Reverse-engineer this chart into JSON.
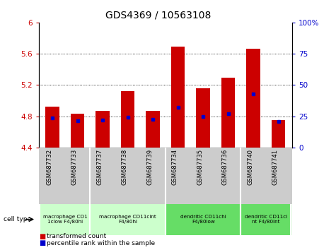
{
  "title": "GDS4369 / 10563108",
  "samples": [
    "GSM687732",
    "GSM687733",
    "GSM687737",
    "GSM687738",
    "GSM687739",
    "GSM687734",
    "GSM687735",
    "GSM687736",
    "GSM687740",
    "GSM687741"
  ],
  "bar_heights": [
    4.92,
    4.83,
    4.87,
    5.12,
    4.87,
    5.69,
    5.16,
    5.29,
    5.66,
    4.75
  ],
  "percentile_values": [
    4.78,
    4.74,
    4.75,
    4.79,
    4.76,
    4.91,
    4.8,
    4.83,
    5.09,
    4.73
  ],
  "bar_bottom": 4.4,
  "ylim_left": [
    4.4,
    6.0
  ],
  "ylim_right": [
    0,
    100
  ],
  "yticks_left": [
    4.4,
    4.8,
    5.2,
    5.6,
    6.0
  ],
  "yticks_right": [
    0,
    25,
    50,
    75,
    100
  ],
  "ytick_labels_left": [
    "4.4",
    "4.8",
    "5.2",
    "5.6",
    "6"
  ],
  "ytick_labels_right": [
    "0",
    "25",
    "50",
    "75",
    "100%"
  ],
  "bar_color": "#cc0000",
  "percentile_color": "#0000cc",
  "groups": [
    {
      "label": "macrophage CD1\n1clow F4/80hi",
      "start": 0,
      "end": 2,
      "color": "#ccffcc"
    },
    {
      "label": "macrophage CD11cint\nF4/80hi",
      "start": 2,
      "end": 5,
      "color": "#ccffcc"
    },
    {
      "label": "dendritic CD11chi\nF4/80low",
      "start": 5,
      "end": 8,
      "color": "#66dd66"
    },
    {
      "label": "dendritic CD11ci\nnt F4/80int",
      "start": 8,
      "end": 10,
      "color": "#66dd66"
    }
  ],
  "cell_type_label": "cell type",
  "legend_items": [
    {
      "label": "transformed count",
      "color": "#cc0000"
    },
    {
      "label": "percentile rank within the sample",
      "color": "#0000cc"
    }
  ],
  "bar_width": 0.55,
  "group_separators": [
    2,
    5,
    8
  ],
  "xlim": [
    -0.55,
    9.55
  ],
  "xspan": 10.1,
  "label_bg_color": "#cccccc"
}
